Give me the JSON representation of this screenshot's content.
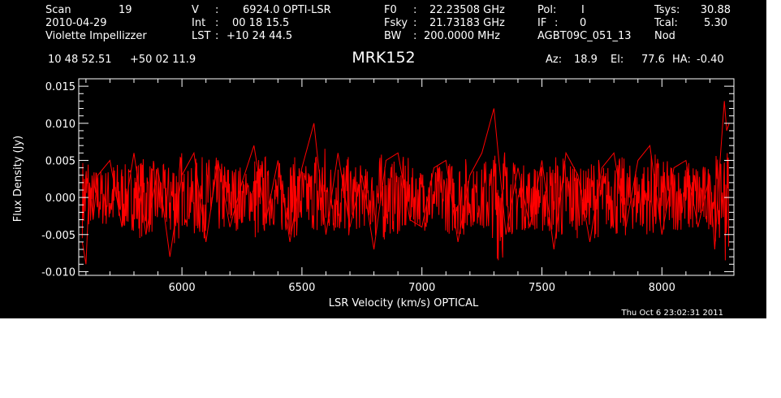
{
  "header": {
    "scan_label": "Scan",
    "scan_value": "19",
    "date": "2010-04-29",
    "observer": "Violette Impellizzer",
    "v_label": "V",
    "v_value": "6924.0 OPTI-LSR",
    "int_label": "Int",
    "int_value": "00 18 15.5",
    "lst_label": "LST",
    "lst_value": "+10 24 44.5",
    "f0_label": "F0",
    "f0_value": "22.23508 GHz",
    "fsky_label": "Fsky",
    "fsky_value": "21.73183 GHz",
    "bw_label": "BW",
    "bw_value": "200.0000 MHz",
    "pol_label": "Pol:",
    "pol_value": "I",
    "if_label": "IF",
    "if_value": "0",
    "project": "AGBT09C_051_13",
    "tsys_label": "Tsys:",
    "tsys_value": "30.88",
    "tcal_label": "Tcal:",
    "tcal_value": "5.30",
    "mode": "Nod",
    "ra": "10 48 52.51",
    "dec": "+50 02 11.9",
    "az_label": "Az:",
    "az_value": "18.9",
    "el_label": "El:",
    "el_value": "77.6",
    "ha_label": "HA:",
    "ha_value": "-0.40"
  },
  "footer": {
    "timestamp": "Thu Oct  6 23:02:31 2011"
  },
  "colors": {
    "background": "#000000",
    "axes": "#ffffff",
    "trace": "#ff0000"
  },
  "chart_data": {
    "type": "line",
    "title": "MRK152",
    "xlabel": "LSR Velocity (km/s) OPTICAL",
    "ylabel": "Flux Density (Jy)",
    "xlim": [
      5570,
      8300
    ],
    "ylim": [
      -0.0105,
      0.016
    ],
    "xticks": [
      6000,
      6500,
      7000,
      7500,
      8000
    ],
    "xtick_labels": [
      "6000",
      "6500",
      "7000",
      "7500",
      "8000"
    ],
    "yticks": [
      -0.01,
      -0.005,
      0.0,
      0.005,
      0.01,
      0.015
    ],
    "ytick_labels": [
      "-0.010",
      "-0.005",
      "0.000",
      "0.005",
      "0.010",
      "0.015"
    ],
    "grid": false,
    "series": [
      {
        "x": [
          5585,
          5600,
          5615,
          5630,
          5650,
          5700,
          5750,
          5800,
          5850,
          5900,
          5950,
          6000,
          6050,
          6100,
          6150,
          6200,
          6250,
          6300,
          6350,
          6400,
          6450,
          6500,
          6550,
          6600,
          6650,
          6700,
          6750,
          6800,
          6850,
          6900,
          6950,
          7000,
          7050,
          7100,
          7150,
          7200,
          7250,
          7300,
          7350,
          7400,
          7450,
          7500,
          7550,
          7600,
          7650,
          7700,
          7750,
          7800,
          7850,
          7900,
          7950,
          8000,
          8050,
          8100,
          8150,
          8200,
          8220,
          8240,
          8260,
          8270,
          8280
        ],
        "y": [
          -0.006,
          -0.009,
          0.002,
          -0.003,
          0.003,
          0.005,
          -0.004,
          0.006,
          -0.005,
          0.004,
          -0.008,
          0.003,
          0.006,
          -0.006,
          0.005,
          -0.004,
          0.002,
          0.007,
          -0.003,
          0.005,
          -0.006,
          0.004,
          0.01,
          -0.005,
          0.006,
          -0.004,
          0.003,
          -0.007,
          0.005,
          0.006,
          -0.003,
          -0.004,
          0.004,
          0.005,
          -0.006,
          0.003,
          0.006,
          0.012,
          -0.005,
          0.004,
          -0.004,
          0.005,
          -0.007,
          0.006,
          0.003,
          -0.006,
          0.004,
          0.006,
          -0.004,
          0.005,
          0.007,
          -0.005,
          0.004,
          0.005,
          -0.004,
          0.003,
          -0.007,
          0.004,
          0.013,
          0.009,
          0.01
        ]
      }
    ]
  }
}
